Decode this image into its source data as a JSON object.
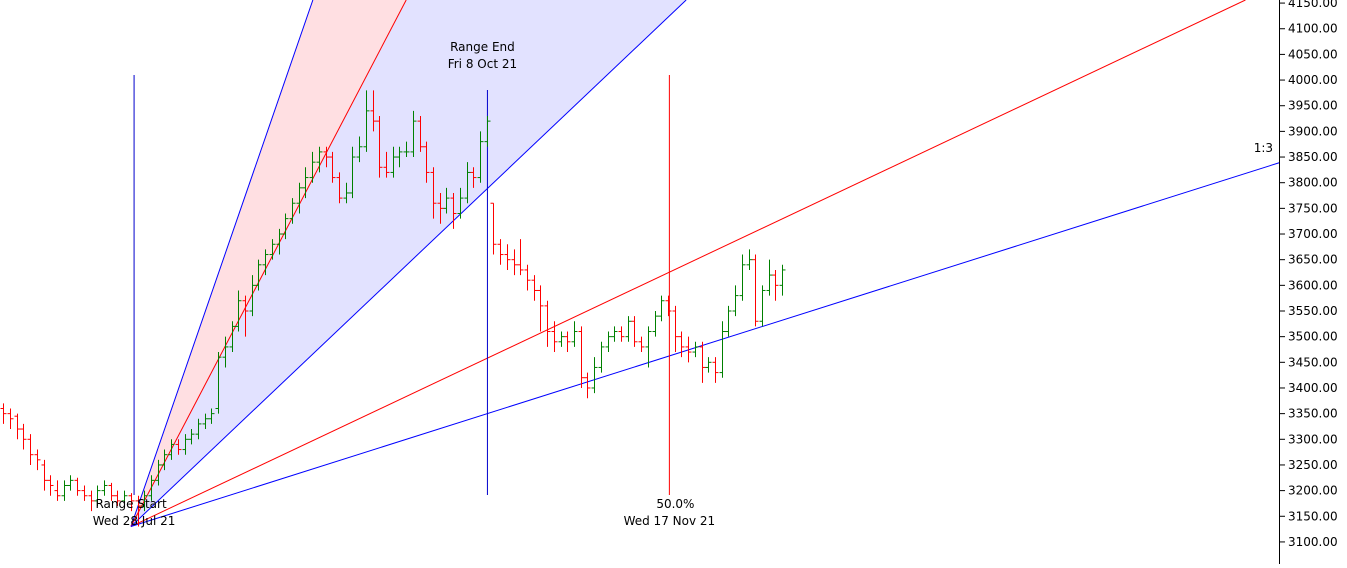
{
  "chart_data": {
    "type": "ohlc",
    "xlim": [
      -0.5,
      190
    ],
    "ylim": [
      3057,
      4156
    ],
    "up_color": "#008000",
    "down_color": "#ff0000",
    "yticks": [
      {
        "value": 4150,
        "label": "4150.00"
      },
      {
        "value": 4100,
        "label": "4100.00"
      },
      {
        "value": 4050,
        "label": "4050.00"
      },
      {
        "value": 4000,
        "label": "4000.00"
      },
      {
        "value": 3950,
        "label": "3950.00"
      },
      {
        "value": 3900,
        "label": "3900.00"
      },
      {
        "value": 3850,
        "label": "3850.00"
      },
      {
        "value": 3800,
        "label": "3800.00"
      },
      {
        "value": 3750,
        "label": "3750.00"
      },
      {
        "value": 3700,
        "label": "3700.00"
      },
      {
        "value": 3650,
        "label": "3650.00"
      },
      {
        "value": 3600,
        "label": "3600.00"
      },
      {
        "value": 3550,
        "label": "3550.00"
      },
      {
        "value": 3500,
        "label": "3500.00"
      },
      {
        "value": 3450,
        "label": "3450.00"
      },
      {
        "value": 3400,
        "label": "3400.00"
      },
      {
        "value": 3350,
        "label": "3350.00"
      },
      {
        "value": 3300,
        "label": "3300.00"
      },
      {
        "value": 3250,
        "label": "3250.00"
      },
      {
        "value": 3200,
        "label": "3200.00"
      },
      {
        "value": 3150,
        "label": "3150.00"
      },
      {
        "value": 3100,
        "label": "3100.00"
      }
    ],
    "ohlc": [
      [
        3360,
        3370,
        3330,
        3350
      ],
      [
        3350,
        3360,
        3320,
        3340
      ],
      [
        3345,
        3350,
        3300,
        3320
      ],
      [
        3320,
        3330,
        3280,
        3300
      ],
      [
        3300,
        3310,
        3250,
        3270
      ],
      [
        3270,
        3280,
        3240,
        3260
      ],
      [
        3250,
        3260,
        3200,
        3220
      ],
      [
        3220,
        3230,
        3190,
        3210
      ],
      [
        3200,
        3220,
        3180,
        3190
      ],
      [
        3190,
        3220,
        3180,
        3210
      ],
      [
        3210,
        3230,
        3200,
        3220
      ],
      [
        3220,
        3225,
        3190,
        3200
      ],
      [
        3200,
        3210,
        3180,
        3190
      ],
      [
        3190,
        3200,
        3160,
        3180
      ],
      [
        3180,
        3210,
        3170,
        3200
      ],
      [
        3200,
        3220,
        3190,
        3210
      ],
      [
        3210,
        3215,
        3180,
        3190
      ],
      [
        3190,
        3200,
        3170,
        3180
      ],
      [
        3180,
        3200,
        3170,
        3190
      ],
      [
        3190,
        3195,
        3160,
        3180
      ],
      [
        3180,
        3190,
        3130,
        3170
      ],
      [
        3170,
        3200,
        3160,
        3190
      ],
      [
        3190,
        3230,
        3180,
        3220
      ],
      [
        3220,
        3260,
        3210,
        3250
      ],
      [
        3250,
        3280,
        3240,
        3270
      ],
      [
        3270,
        3300,
        3260,
        3290
      ],
      [
        3290,
        3300,
        3270,
        3280
      ],
      [
        3280,
        3310,
        3270,
        3300
      ],
      [
        3300,
        3320,
        3290,
        3310
      ],
      [
        3310,
        3340,
        3300,
        3330
      ],
      [
        3330,
        3350,
        3320,
        3340
      ],
      [
        3340,
        3360,
        3330,
        3350
      ],
      [
        3360,
        3470,
        3350,
        3460
      ],
      [
        3460,
        3500,
        3440,
        3480
      ],
      [
        3480,
        3530,
        3470,
        3520
      ],
      [
        3520,
        3590,
        3510,
        3570
      ],
      [
        3570,
        3580,
        3500,
        3550
      ],
      [
        3550,
        3620,
        3540,
        3600
      ],
      [
        3600,
        3650,
        3590,
        3640
      ],
      [
        3640,
        3670,
        3620,
        3660
      ],
      [
        3660,
        3690,
        3650,
        3680
      ],
      [
        3680,
        3710,
        3660,
        3700
      ],
      [
        3700,
        3740,
        3690,
        3730
      ],
      [
        3730,
        3770,
        3720,
        3760
      ],
      [
        3760,
        3800,
        3740,
        3790
      ],
      [
        3790,
        3830,
        3770,
        3810
      ],
      [
        3810,
        3860,
        3800,
        3840
      ],
      [
        3840,
        3870,
        3820,
        3860
      ],
      [
        3860,
        3870,
        3830,
        3850
      ],
      [
        3850,
        3860,
        3800,
        3810
      ],
      [
        3810,
        3820,
        3760,
        3770
      ],
      [
        3770,
        3800,
        3760,
        3780
      ],
      [
        3780,
        3870,
        3770,
        3850
      ],
      [
        3850,
        3890,
        3840,
        3870
      ],
      [
        3870,
        3980,
        3860,
        3940
      ],
      [
        3940,
        3980,
        3900,
        3920
      ],
      [
        3920,
        3930,
        3810,
        3830
      ],
      [
        3830,
        3860,
        3810,
        3820
      ],
      [
        3820,
        3870,
        3810,
        3850
      ],
      [
        3850,
        3870,
        3830,
        3860
      ],
      [
        3860,
        3880,
        3850,
        3860
      ],
      [
        3860,
        3940,
        3850,
        3920
      ],
      [
        3920,
        3930,
        3860,
        3870
      ],
      [
        3870,
        3880,
        3800,
        3820
      ],
      [
        3820,
        3830,
        3730,
        3760
      ],
      [
        3760,
        3780,
        3720,
        3750
      ],
      [
        3750,
        3790,
        3740,
        3770
      ],
      [
        3770,
        3780,
        3710,
        3740
      ],
      [
        3740,
        3790,
        3730,
        3770
      ],
      [
        3770,
        3840,
        3760,
        3820
      ],
      [
        3820,
        3830,
        3790,
        3810
      ],
      [
        3810,
        3900,
        3800,
        3880
      ],
      [
        3880,
        3930,
        3870,
        3920
      ],
      [
        3760,
        3760,
        3660,
        3680
      ],
      [
        3680,
        3690,
        3640,
        3660
      ],
      [
        3660,
        3680,
        3630,
        3650
      ],
      [
        3650,
        3670,
        3620,
        3640
      ],
      [
        3640,
        3690,
        3620,
        3630
      ],
      [
        3630,
        3640,
        3590,
        3610
      ],
      [
        3610,
        3620,
        3570,
        3590
      ],
      [
        3590,
        3600,
        3510,
        3560
      ],
      [
        3560,
        3570,
        3480,
        3510
      ],
      [
        3510,
        3530,
        3470,
        3490
      ],
      [
        3490,
        3510,
        3480,
        3500
      ],
      [
        3500,
        3510,
        3470,
        3490
      ],
      [
        3490,
        3530,
        3480,
        3510
      ],
      [
        3510,
        3520,
        3400,
        3420
      ],
      [
        3420,
        3430,
        3380,
        3400
      ],
      [
        3400,
        3460,
        3390,
        3440
      ],
      [
        3440,
        3490,
        3430,
        3480
      ],
      [
        3480,
        3510,
        3470,
        3500
      ],
      [
        3500,
        3520,
        3490,
        3510
      ],
      [
        3510,
        3520,
        3490,
        3500
      ],
      [
        3500,
        3540,
        3490,
        3530
      ],
      [
        3530,
        3540,
        3480,
        3490
      ],
      [
        3490,
        3500,
        3470,
        3480
      ],
      [
        3480,
        3520,
        3440,
        3510
      ],
      [
        3510,
        3550,
        3500,
        3540
      ],
      [
        3540,
        3580,
        3530,
        3570
      ],
      [
        3570,
        3580,
        3540,
        3550
      ],
      [
        3550,
        3560,
        3470,
        3500
      ],
      [
        3500,
        3510,
        3460,
        3480
      ],
      [
        3480,
        3500,
        3450,
        3470
      ],
      [
        3470,
        3490,
        3460,
        3480
      ],
      [
        3480,
        3490,
        3410,
        3440
      ],
      [
        3440,
        3460,
        3430,
        3450
      ],
      [
        3450,
        3460,
        3410,
        3430
      ],
      [
        3430,
        3530,
        3420,
        3510
      ],
      [
        3510,
        3560,
        3500,
        3550
      ],
      [
        3550,
        3600,
        3540,
        3580
      ],
      [
        3580,
        3660,
        3570,
        3640
      ],
      [
        3640,
        3670,
        3630,
        3650
      ],
      [
        3650,
        3660,
        3520,
        3530
      ],
      [
        3530,
        3600,
        3520,
        3590
      ],
      [
        3590,
        3650,
        3580,
        3620
      ],
      [
        3620,
        3630,
        3570,
        3600
      ],
      [
        3600,
        3640,
        3580,
        3630
      ]
    ],
    "fan": [
      {
        "color": "#0000ff",
        "points": [
          [
            19,
            3130
          ],
          [
            46.1,
            4156
          ]
        ]
      },
      {
        "color": "#ff0000",
        "points": [
          [
            19,
            3130
          ],
          [
            60,
            4156
          ]
        ]
      },
      {
        "color": "#0000ff",
        "points": [
          [
            19,
            3130
          ],
          [
            101.7,
            4156
          ]
        ]
      },
      {
        "color": "#ff0000",
        "points": [
          [
            19,
            3130
          ],
          [
            185,
            4156
          ]
        ]
      },
      {
        "color": "#0000ff",
        "points": [
          [
            19,
            3130
          ],
          [
            190.3,
            3840
          ]
        ],
        "label": "1:3"
      }
    ],
    "shades": [
      {
        "lines": [
          0,
          1
        ],
        "color": "#ffdfe2"
      },
      {
        "lines": [
          1,
          2
        ],
        "color": "#e2e2ff"
      }
    ],
    "markers": [
      {
        "x": 19.47,
        "color": "#0000cc",
        "label": "Range Start",
        "date": "Wed 28 Jul 21"
      },
      {
        "x": 72.1,
        "color": "#0000cc",
        "label": "Range End",
        "date": "Fri 8 Oct 21"
      },
      {
        "x": 99.2,
        "color": "#ff0000",
        "label": "50.0%",
        "date": "Wed 17 Nov 21"
      }
    ]
  }
}
